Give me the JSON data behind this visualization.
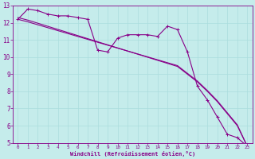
{
  "xlabel": "Windchill (Refroidissement éolien,°C)",
  "bg_color": "#c5eceb",
  "line_color": "#880088",
  "grid_color": "#aadddd",
  "x_hours": [
    0,
    1,
    2,
    3,
    4,
    5,
    6,
    7,
    8,
    9,
    10,
    11,
    12,
    13,
    14,
    15,
    16,
    17,
    18,
    19,
    20,
    21,
    22,
    23
  ],
  "line_wavy": [
    12.2,
    12.8,
    12.7,
    12.5,
    12.4,
    12.4,
    12.3,
    12.2,
    10.4,
    10.3,
    11.1,
    11.3,
    11.3,
    11.3,
    11.2,
    11.8,
    11.6,
    10.3,
    8.3,
    7.5,
    6.5,
    5.5,
    5.3,
    4.8
  ],
  "line_straight1": [
    12.3,
    12.15,
    11.97,
    11.79,
    11.61,
    11.43,
    11.25,
    11.07,
    10.89,
    10.71,
    10.53,
    10.35,
    10.17,
    9.99,
    9.81,
    9.63,
    9.45,
    9.0,
    8.55,
    8.0,
    7.4,
    6.7,
    6.0,
    4.8
  ],
  "line_straight2": [
    12.2,
    12.05,
    11.88,
    11.71,
    11.54,
    11.37,
    11.2,
    11.03,
    10.86,
    10.69,
    10.52,
    10.35,
    10.18,
    10.01,
    9.84,
    9.67,
    9.5,
    9.05,
    8.6,
    8.05,
    7.45,
    6.75,
    6.05,
    4.8
  ],
  "ylim": [
    5,
    13
  ],
  "xlim": [
    -0.5,
    23.5
  ],
  "yticks": [
    5,
    6,
    7,
    8,
    9,
    10,
    11,
    12,
    13
  ],
  "xticks": [
    0,
    1,
    2,
    3,
    4,
    5,
    6,
    7,
    8,
    9,
    10,
    11,
    12,
    13,
    14,
    15,
    16,
    17,
    18,
    19,
    20,
    21,
    22,
    23
  ]
}
